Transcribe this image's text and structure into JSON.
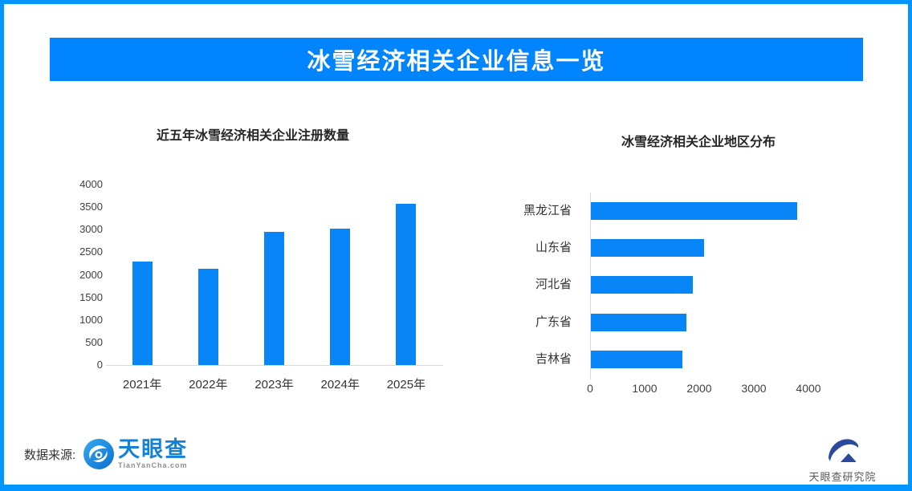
{
  "colors": {
    "page_bg": "#ffffff",
    "border": "#0095ff",
    "banner": "#0084ff",
    "bar": "#0886f8",
    "axis_line": "#d9d9d9",
    "tick_text": "#404040",
    "title_text": "#262626",
    "tianyancha_blue": "#1580d8",
    "domain_gray": "#8f8f8f",
    "footer_text": "#333333",
    "institute_navy": "#2b4a9e",
    "institute_text": "#595959"
  },
  "header": {
    "title": "冰雪经济相关企业信息一览"
  },
  "chart_data": [
    {
      "type": "bar",
      "title": "近五年冰雪经济相关企业注册数量",
      "categories": [
        "2021年",
        "2022年",
        "2023年",
        "2024年",
        "2025年"
      ],
      "values": [
        2300,
        2130,
        2950,
        3030,
        3580
      ],
      "xlabel": "",
      "ylabel": "",
      "ylim": [
        0,
        4000
      ],
      "yticks": [
        0,
        500,
        1000,
        1500,
        2000,
        2500,
        3000,
        3500,
        4000
      ],
      "grid": false,
      "legend": false,
      "bar_color": "#0886f8"
    },
    {
      "type": "bar",
      "orientation": "horizontal",
      "title": "冰雪经济相关企业地区分布",
      "categories": [
        "黑龙江省",
        "山东省",
        "河北省",
        "广东省",
        "吉林省"
      ],
      "values": [
        3780,
        2080,
        1870,
        1750,
        1680
      ],
      "xlabel": "",
      "ylabel": "",
      "xlim": [
        0,
        4000
      ],
      "xticks": [
        0,
        1000,
        2000,
        3000,
        4000
      ],
      "grid": false,
      "legend": false,
      "bar_color": "#0886f8"
    }
  ],
  "footer": {
    "source_label": "数据来源:",
    "tianyancha": {
      "name": "天眼查",
      "domain": "TianYanCha.com"
    },
    "institute": {
      "name": "天眼查研究院"
    }
  }
}
